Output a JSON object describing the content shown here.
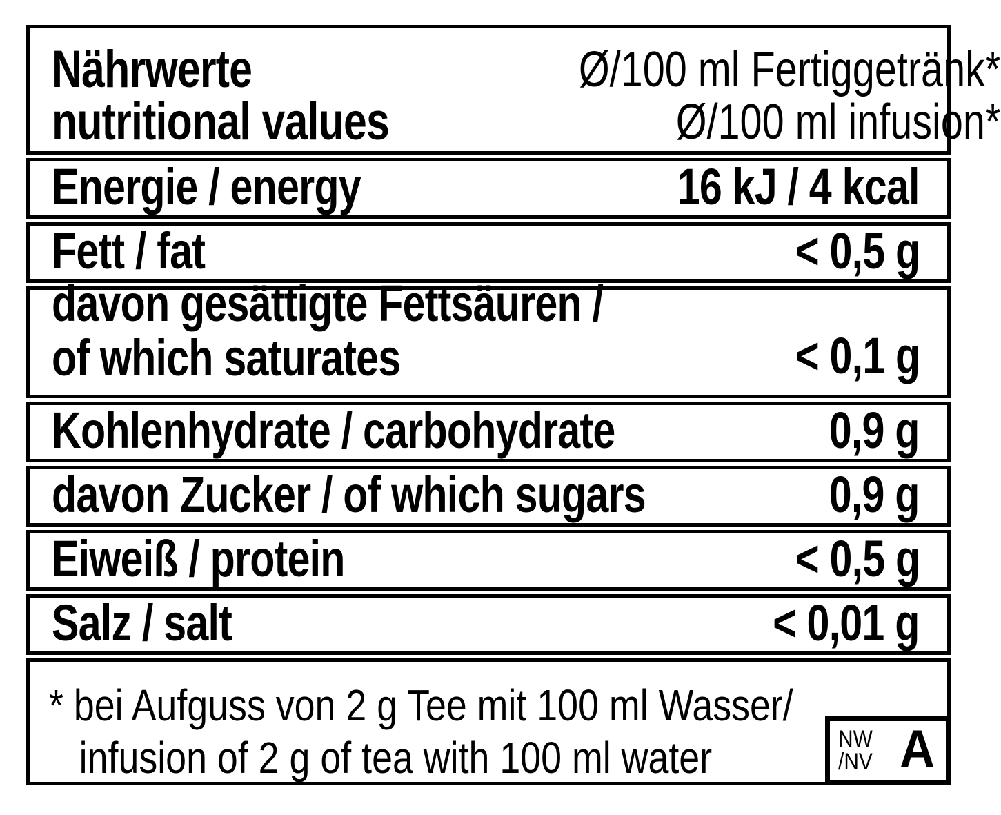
{
  "header": {
    "title_de": "Nährwerte",
    "title_en": "nutritional values",
    "unit_de": "Ø/100 ml Fertiggetränk*",
    "unit_en": "Ø/100 ml infusion*"
  },
  "rows": [
    {
      "label": "Energie / energy",
      "value": "16 kJ / 4 kcal"
    },
    {
      "label": "Fett / fat",
      "value": "< 0,5 g"
    },
    {
      "label1": "davon gesättigte Fettsäuren /",
      "label2": "of which saturates",
      "value": "< 0,1 g"
    },
    {
      "label": "Kohlenhydrate / carbohydrate",
      "value": "0,9 g"
    },
    {
      "label": "davon Zucker / of which sugars",
      "value": "0,9 g"
    },
    {
      "label": "Eiweiß / protein",
      "value": "< 0,5 g"
    },
    {
      "label": "Salz / salt",
      "value": "< 0,01 g"
    }
  ],
  "footnote": {
    "line1": "* bei Aufguss von 2 g Tee mit 100 ml Wasser/",
    "line2": "infusion of 2 g of tea with 100 ml water"
  },
  "badge": {
    "top": "NW",
    "bottom": "/NV",
    "grade": "A"
  },
  "colors": {
    "ink": "#000000",
    "paper": "#ffffff"
  }
}
